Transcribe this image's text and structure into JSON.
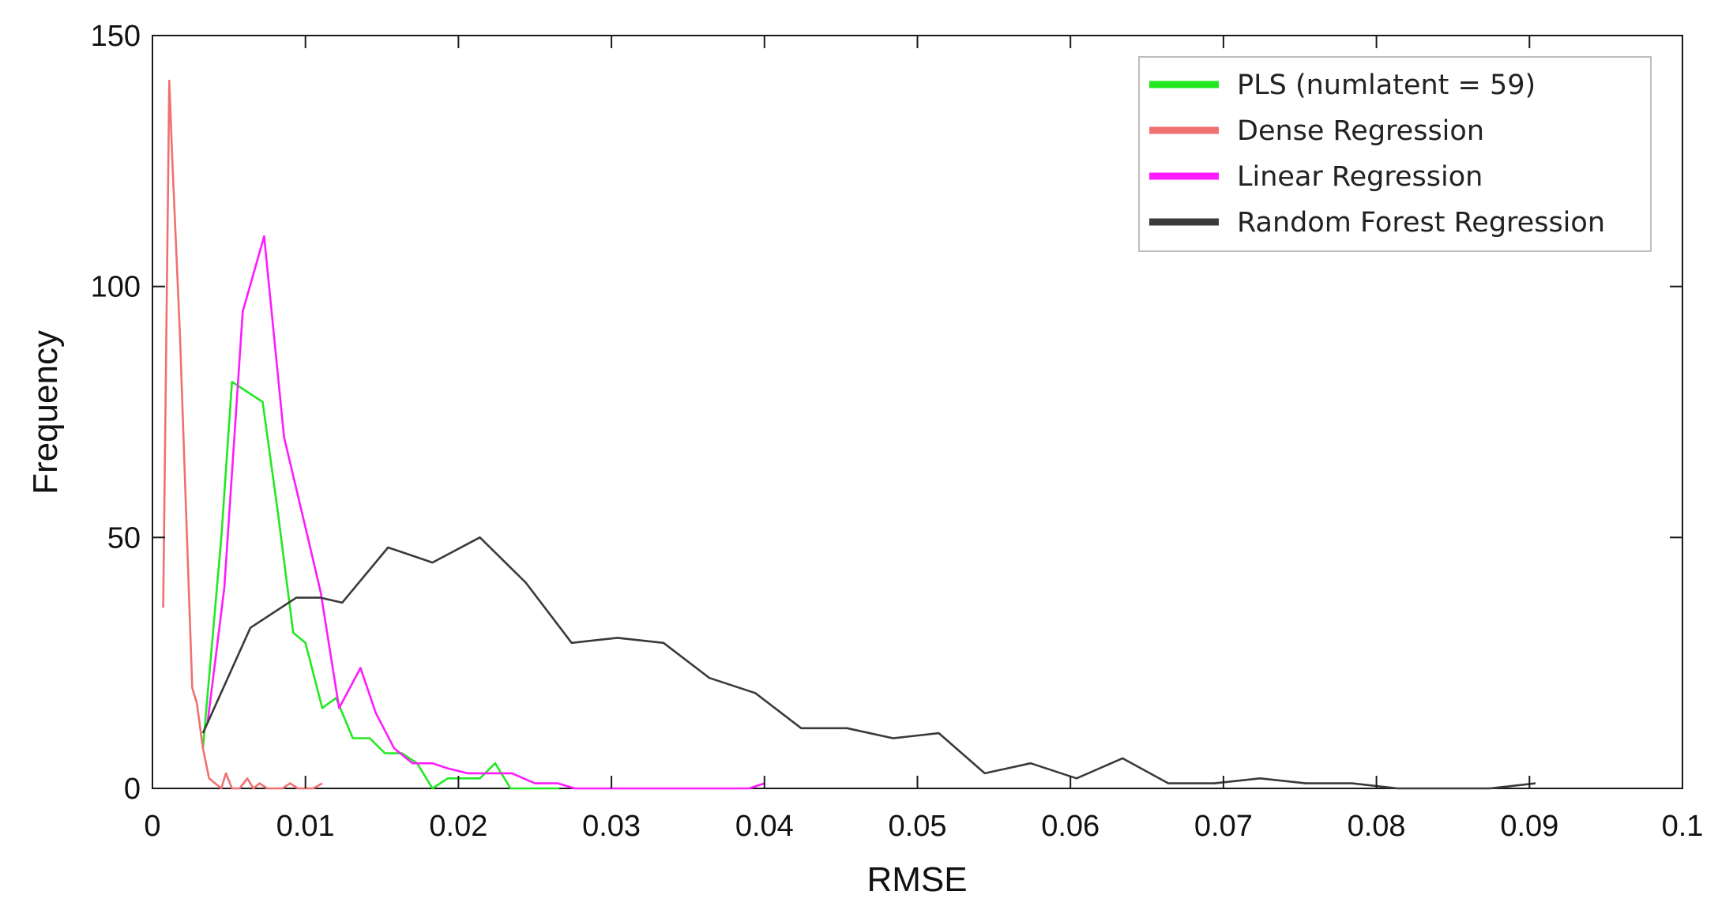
{
  "chart_data": {
    "type": "line",
    "xlabel": "RMSE",
    "ylabel": "Frequency",
    "xlim": [
      0,
      0.1
    ],
    "ylim": [
      0,
      150
    ],
    "xticks": [
      0,
      0.01,
      0.02,
      0.03,
      0.04,
      0.05,
      0.06,
      0.07,
      0.08,
      0.09,
      0.1
    ],
    "xtick_labels": [
      "0",
      "0.01",
      "0.02",
      "0.03",
      "0.04",
      "0.05",
      "0.06",
      "0.07",
      "0.08",
      "0.09",
      "0.1"
    ],
    "yticks": [
      0,
      50,
      100,
      150
    ],
    "ytick_labels": [
      "0",
      "50",
      "100",
      "150"
    ],
    "grid": false,
    "legend_position": "top-right",
    "series": [
      {
        "name": "PLS (numlatent = 59)",
        "color": "#22e822",
        "x": [
          0.0033,
          0.0045,
          0.0052,
          0.0072,
          0.0082,
          0.0092,
          0.01,
          0.0111,
          0.012,
          0.0131,
          0.0142,
          0.0152,
          0.0163,
          0.0173,
          0.0183,
          0.0193,
          0.0204,
          0.0214,
          0.0224,
          0.0234,
          0.0244,
          0.0255,
          0.0266
        ],
        "y": [
          8,
          50,
          81,
          77,
          55,
          31,
          29,
          16,
          18,
          10,
          10,
          7,
          7,
          5,
          0,
          2,
          2,
          2,
          5,
          0,
          0,
          0,
          0
        ]
      },
      {
        "name": "Dense Regression",
        "color": "#f07070",
        "x": [
          0.0007,
          0.0011,
          0.0013,
          0.0018,
          0.0022,
          0.0026,
          0.0029,
          0.0033,
          0.0037,
          0.0041,
          0.0045,
          0.0048,
          0.0052,
          0.0057,
          0.0062,
          0.0066,
          0.007,
          0.0075,
          0.008,
          0.0085,
          0.009,
          0.0095,
          0.01,
          0.0105,
          0.0111
        ],
        "y": [
          36,
          141,
          125,
          90,
          55,
          20,
          17,
          8,
          2,
          1,
          0,
          3,
          0,
          0,
          2,
          0,
          1,
          0,
          0,
          0,
          1,
          0,
          0,
          0,
          1
        ]
      },
      {
        "name": "Linear Regression",
        "color": "#ff1aff",
        "x": [
          0.0036,
          0.0047,
          0.0059,
          0.0073,
          0.0086,
          0.01,
          0.011,
          0.0122,
          0.0136,
          0.0146,
          0.0158,
          0.017,
          0.0183,
          0.0193,
          0.0206,
          0.022,
          0.0235,
          0.025,
          0.0265,
          0.0276,
          0.03,
          0.033,
          0.036,
          0.039,
          0.04
        ],
        "y": [
          13,
          40,
          95,
          110,
          70,
          52,
          39,
          16,
          24,
          15,
          8,
          5,
          5,
          4,
          3,
          3,
          3,
          1,
          1,
          0,
          0,
          0,
          0,
          0,
          1
        ]
      },
      {
        "name": "Random Forest Regression",
        "color": "#3a3a3a",
        "x": [
          0.0033,
          0.0064,
          0.0094,
          0.011,
          0.0124,
          0.0154,
          0.0183,
          0.0214,
          0.0244,
          0.0274,
          0.0304,
          0.0334,
          0.0364,
          0.0394,
          0.0424,
          0.0454,
          0.0484,
          0.0514,
          0.0544,
          0.0574,
          0.0604,
          0.0634,
          0.0664,
          0.0694,
          0.0724,
          0.0754,
          0.0784,
          0.0814,
          0.0844,
          0.0874,
          0.0904
        ],
        "y": [
          11,
          32,
          38,
          38,
          37,
          48,
          45,
          50,
          41,
          29,
          30,
          29,
          22,
          19,
          12,
          12,
          10,
          11,
          3,
          5,
          2,
          6,
          1,
          1,
          2,
          1,
          1,
          0,
          0,
          0,
          1
        ]
      }
    ]
  }
}
